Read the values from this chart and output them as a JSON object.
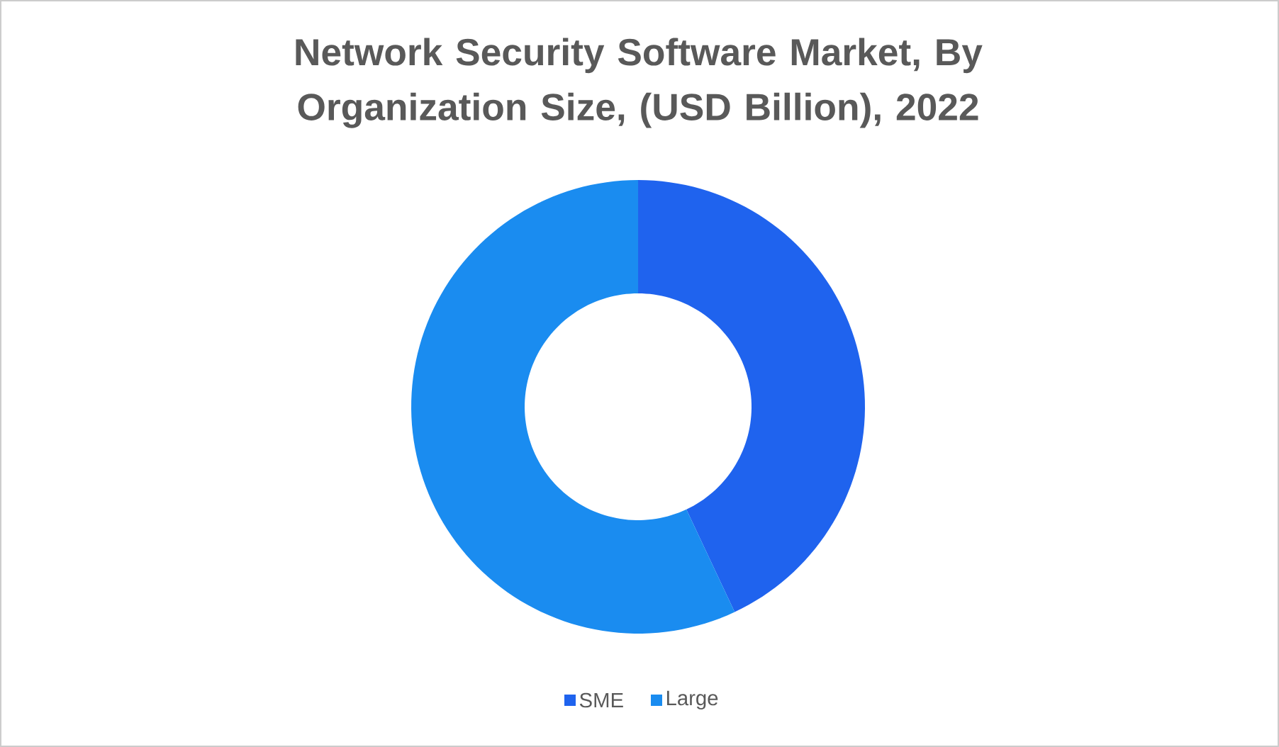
{
  "chart_data": {
    "type": "donut",
    "title": "Network Security Software Market, By Organization Size, (USD Billion), 2022",
    "categories": [
      "SME",
      "Large"
    ],
    "values": [
      43,
      57
    ],
    "colors": [
      "#1f63ee",
      "#1a8cf0"
    ],
    "legend": "bottom"
  }
}
